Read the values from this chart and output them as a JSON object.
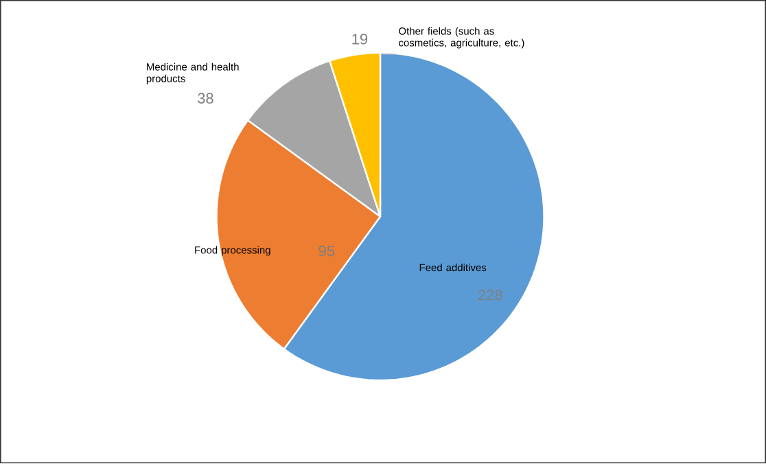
{
  "chart_data": {
    "type": "pie",
    "categories": [
      "Feed additives",
      "Food processing",
      "Medicine and health products",
      "Other fields (such as cosmetics, agriculture, etc.)"
    ],
    "values": [
      228,
      95,
      38,
      19
    ],
    "colors": [
      "#5b9bd5",
      "#ed7d31",
      "#a5a5a5",
      "#ffc000"
    ],
    "data_labels": true
  }
}
